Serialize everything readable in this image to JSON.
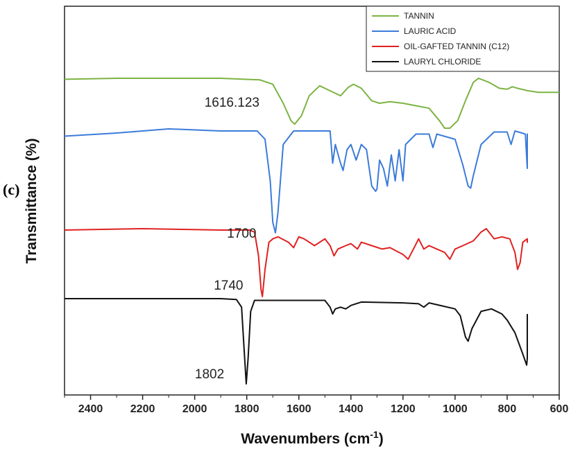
{
  "panel_label": "(c)",
  "chart_data": {
    "type": "line",
    "title": "",
    "xlabel": "Wavenumbers (cm",
    "xlabel_sup": "-1",
    "xlabel_close": ")",
    "ylabel": "Transmittance (%)",
    "xlim": [
      2500,
      600
    ],
    "x_ticks": [
      2400,
      2200,
      2000,
      1800,
      1600,
      1400,
      1200,
      1000,
      800,
      600
    ],
    "y_ticks_shown": false,
    "legend_position": "top-right",
    "series": [
      {
        "name": "TANNIN",
        "color": "#7cb342",
        "points": [
          [
            2500,
            0.02
          ],
          [
            2300,
            0.0
          ],
          [
            2100,
            0.0
          ],
          [
            1900,
            0.0
          ],
          [
            1750,
            0.03
          ],
          [
            1700,
            0.12
          ],
          [
            1660,
            0.5
          ],
          [
            1630,
            0.85
          ],
          [
            1616,
            0.92
          ],
          [
            1590,
            0.75
          ],
          [
            1560,
            0.35
          ],
          [
            1520,
            0.15
          ],
          [
            1480,
            0.25
          ],
          [
            1440,
            0.35
          ],
          [
            1410,
            0.18
          ],
          [
            1390,
            0.12
          ],
          [
            1360,
            0.2
          ],
          [
            1320,
            0.45
          ],
          [
            1290,
            0.5
          ],
          [
            1250,
            0.47
          ],
          [
            1200,
            0.5
          ],
          [
            1150,
            0.55
          ],
          [
            1100,
            0.6
          ],
          [
            1060,
            0.85
          ],
          [
            1040,
            1.0
          ],
          [
            1020,
            1.0
          ],
          [
            990,
            0.85
          ],
          [
            960,
            0.45
          ],
          [
            930,
            0.08
          ],
          [
            910,
            0.0
          ],
          [
            870,
            0.08
          ],
          [
            830,
            0.2
          ],
          [
            800,
            0.22
          ],
          [
            780,
            0.17
          ],
          [
            760,
            0.2
          ],
          [
            720,
            0.25
          ],
          [
            680,
            0.28
          ],
          [
            600,
            0.28
          ]
        ]
      },
      {
        "name": "LAURIC ACID",
        "color": "#3b7bd9",
        "points": [
          [
            2500,
            0.07
          ],
          [
            2300,
            0.04
          ],
          [
            2100,
            0.0
          ],
          [
            1900,
            0.02
          ],
          [
            1760,
            0.02
          ],
          [
            1730,
            0.1
          ],
          [
            1710,
            0.5
          ],
          [
            1700,
            0.9
          ],
          [
            1690,
            1.0
          ],
          [
            1680,
            0.8
          ],
          [
            1660,
            0.15
          ],
          [
            1620,
            0.02
          ],
          [
            1480,
            0.02
          ],
          [
            1470,
            0.33
          ],
          [
            1460,
            0.15
          ],
          [
            1440,
            0.33
          ],
          [
            1430,
            0.4
          ],
          [
            1415,
            0.2
          ],
          [
            1400,
            0.15
          ],
          [
            1380,
            0.3
          ],
          [
            1360,
            0.15
          ],
          [
            1340,
            0.2
          ],
          [
            1320,
            0.55
          ],
          [
            1305,
            0.6
          ],
          [
            1300,
            0.58
          ],
          [
            1290,
            0.3
          ],
          [
            1275,
            0.38
          ],
          [
            1260,
            0.55
          ],
          [
            1245,
            0.25
          ],
          [
            1230,
            0.5
          ],
          [
            1215,
            0.2
          ],
          [
            1200,
            0.5
          ],
          [
            1190,
            0.15
          ],
          [
            1150,
            0.05
          ],
          [
            1100,
            0.05
          ],
          [
            1085,
            0.18
          ],
          [
            1070,
            0.05
          ],
          [
            1000,
            0.1
          ],
          [
            970,
            0.35
          ],
          [
            950,
            0.55
          ],
          [
            940,
            0.57
          ],
          [
            930,
            0.45
          ],
          [
            900,
            0.15
          ],
          [
            850,
            0.03
          ],
          [
            800,
            0.03
          ],
          [
            785,
            0.15
          ],
          [
            770,
            0.02
          ],
          [
            730,
            0.05
          ],
          [
            722,
            0.38
          ],
          [
            712,
            0.15
          ],
          [
            700,
            0.05
          ],
          [
            688,
            0.28
          ],
          [
            678,
            0.05
          ],
          [
            660,
            0.1
          ],
          [
            640,
            0.05
          ]
        ]
      },
      {
        "name": "OIL-GAFTED TANNIN (C12)",
        "color": "#e02020",
        "points": [
          [
            2500,
            0.02
          ],
          [
            2200,
            0.0
          ],
          [
            1900,
            0.02
          ],
          [
            1790,
            0.02
          ],
          [
            1770,
            0.05
          ],
          [
            1755,
            0.4
          ],
          [
            1745,
            0.9
          ],
          [
            1740,
            1.0
          ],
          [
            1730,
            0.6
          ],
          [
            1715,
            0.2
          ],
          [
            1700,
            0.15
          ],
          [
            1680,
            0.12
          ],
          [
            1640,
            0.2
          ],
          [
            1620,
            0.28
          ],
          [
            1600,
            0.12
          ],
          [
            1580,
            0.15
          ],
          [
            1540,
            0.25
          ],
          [
            1500,
            0.15
          ],
          [
            1480,
            0.25
          ],
          [
            1465,
            0.4
          ],
          [
            1450,
            0.3
          ],
          [
            1420,
            0.25
          ],
          [
            1400,
            0.22
          ],
          [
            1375,
            0.3
          ],
          [
            1360,
            0.2
          ],
          [
            1320,
            0.25
          ],
          [
            1280,
            0.3
          ],
          [
            1250,
            0.28
          ],
          [
            1200,
            0.38
          ],
          [
            1180,
            0.45
          ],
          [
            1160,
            0.3
          ],
          [
            1140,
            0.15
          ],
          [
            1120,
            0.3
          ],
          [
            1100,
            0.25
          ],
          [
            1070,
            0.3
          ],
          [
            1040,
            0.35
          ],
          [
            1020,
            0.45
          ],
          [
            1000,
            0.3
          ],
          [
            970,
            0.25
          ],
          [
            930,
            0.18
          ],
          [
            900,
            0.05
          ],
          [
            880,
            0.0
          ],
          [
            850,
            0.15
          ],
          [
            820,
            0.12
          ],
          [
            790,
            0.15
          ],
          [
            770,
            0.35
          ],
          [
            760,
            0.6
          ],
          [
            750,
            0.5
          ],
          [
            740,
            0.2
          ],
          [
            720,
            0.15
          ],
          [
            700,
            0.2
          ],
          [
            690,
            0.15
          ],
          [
            670,
            0.2
          ],
          [
            650,
            0.15
          ]
        ]
      },
      {
        "name": "LAURYL CHLORIDE",
        "color": "#111111",
        "points": [
          [
            2500,
            0.0
          ],
          [
            2300,
            0.0
          ],
          [
            2100,
            0.0
          ],
          [
            1900,
            0.0
          ],
          [
            1840,
            0.01
          ],
          [
            1820,
            0.1
          ],
          [
            1810,
            0.6
          ],
          [
            1802,
            1.0
          ],
          [
            1795,
            0.7
          ],
          [
            1785,
            0.15
          ],
          [
            1770,
            0.02
          ],
          [
            1600,
            0.02
          ],
          [
            1500,
            0.02
          ],
          [
            1480,
            0.1
          ],
          [
            1470,
            0.18
          ],
          [
            1460,
            0.12
          ],
          [
            1440,
            0.1
          ],
          [
            1420,
            0.12
          ],
          [
            1400,
            0.08
          ],
          [
            1360,
            0.04
          ],
          [
            1200,
            0.05
          ],
          [
            1140,
            0.06
          ],
          [
            1120,
            0.1
          ],
          [
            1100,
            0.05
          ],
          [
            1000,
            0.12
          ],
          [
            980,
            0.2
          ],
          [
            960,
            0.45
          ],
          [
            950,
            0.5
          ],
          [
            935,
            0.35
          ],
          [
            900,
            0.15
          ],
          [
            860,
            0.12
          ],
          [
            820,
            0.18
          ],
          [
            800,
            0.25
          ],
          [
            770,
            0.4
          ],
          [
            740,
            0.65
          ],
          [
            725,
            0.78
          ],
          [
            715,
            0.7
          ],
          [
            705,
            0.4
          ],
          [
            695,
            0.25
          ],
          [
            685,
            0.45
          ],
          [
            678,
            0.65
          ],
          [
            670,
            0.4
          ],
          [
            660,
            0.2
          ],
          [
            645,
            0.18
          ]
        ]
      }
    ],
    "annotations": [
      {
        "text": "1616.123",
        "x": 1616,
        "series": "TANNIN"
      },
      {
        "text": "1700",
        "x": 1700,
        "series": "LAURIC ACID"
      },
      {
        "text": "1740",
        "x": 1740,
        "series": "OIL-GAFTED TANNIN (C12)"
      },
      {
        "text": "1802",
        "x": 1802,
        "series": "LAURYL CHLORIDE"
      }
    ]
  }
}
